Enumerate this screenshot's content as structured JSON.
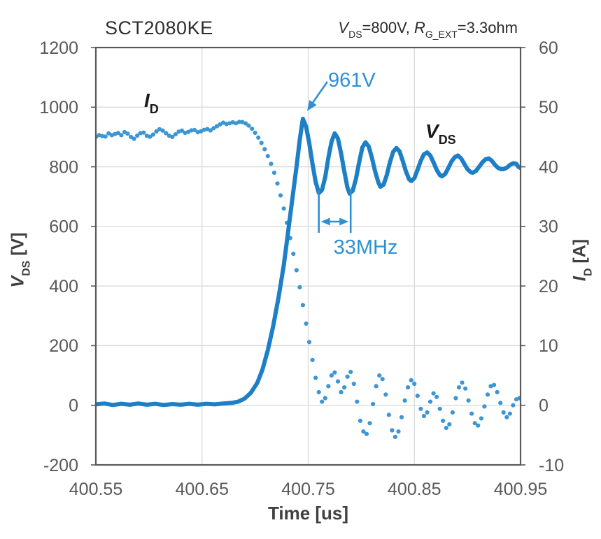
{
  "header": {
    "title": "SCT2080KE"
  },
  "condition": {
    "v": "V",
    "v_sub": "DS",
    "mid": "=800V, ",
    "r": "R",
    "r_sub": "G_EXT",
    "tail": "=3.3ohm"
  },
  "axis_titles": {
    "left_sym": "V",
    "left_sub": "DS",
    "left_unit": " [V]",
    "right_sym": "I",
    "right_sub": "D",
    "right_unit": " [A]",
    "x_label": "Time [us]"
  },
  "curve_labels": {
    "id_sym": "I",
    "id_sub": "D",
    "vds_sym": "V",
    "vds_sub": "DS"
  },
  "annotation_labels": {
    "peak": "961V",
    "freq": "33MHz"
  },
  "chart_data": {
    "type": "line",
    "title": "SCT2080KE",
    "condition": "V_DS=800V, R_G_EXT=3.3ohm",
    "x": {
      "label": "Time [us]",
      "min": 400.55,
      "max": 400.95,
      "ticks": [
        400.55,
        400.65,
        400.75,
        400.85,
        400.95
      ],
      "gridlines": [
        400.65,
        400.75,
        400.85
      ]
    },
    "y_left": {
      "label": "V_DS [V]",
      "min": -200,
      "max": 1200,
      "ticks": [
        1200,
        1000,
        800,
        600,
        400,
        200,
        0,
        -200
      ]
    },
    "y_right": {
      "label": "I_D [A]",
      "min": -10,
      "max": 60,
      "ticks": [
        60,
        50,
        40,
        30,
        20,
        10,
        0,
        -10
      ]
    },
    "grid": true,
    "legend": "none",
    "colors": {
      "grid": "#d9d9d9",
      "frame": "#595959",
      "tick_text": "#595959",
      "vds_line": "#1d7fc6",
      "id_dots": "#3c96d4",
      "annotation": "#2e90d3"
    },
    "annotations": {
      "peak": {
        "text": "961V",
        "t": 400.745,
        "value": 961
      },
      "ring": {
        "text": "33MHz",
        "t1": 400.76,
        "t2": 400.79,
        "freq_mhz": 33
      }
    },
    "series": [
      {
        "name": "I_D",
        "axis": "right",
        "style": "dotted",
        "color": "#3c96d4",
        "unit": "A",
        "points": [
          [
            400.55,
            45.0
          ],
          [
            400.554,
            45.4
          ],
          [
            400.558,
            44.9
          ],
          [
            400.562,
            45.6
          ],
          [
            400.566,
            45.2
          ],
          [
            400.57,
            45.8
          ],
          [
            400.574,
            45.3
          ],
          [
            400.578,
            46.0
          ],
          [
            400.582,
            45.1
          ],
          [
            400.586,
            44.7
          ],
          [
            400.59,
            45.4
          ],
          [
            400.594,
            45.9
          ],
          [
            400.598,
            45.2
          ],
          [
            400.602,
            45.0
          ],
          [
            400.606,
            45.8
          ],
          [
            400.61,
            46.3
          ],
          [
            400.614,
            46.0
          ],
          [
            400.618,
            45.3
          ],
          [
            400.622,
            45.0
          ],
          [
            400.626,
            45.6
          ],
          [
            400.63,
            46.2
          ],
          [
            400.634,
            45.7
          ],
          [
            400.638,
            45.9
          ],
          [
            400.642,
            46.3
          ],
          [
            400.646,
            45.8
          ],
          [
            400.65,
            46.0
          ],
          [
            400.654,
            46.4
          ],
          [
            400.658,
            46.1
          ],
          [
            400.662,
            46.6
          ],
          [
            400.666,
            47.0
          ],
          [
            400.67,
            47.4
          ],
          [
            400.674,
            47.1
          ],
          [
            400.678,
            47.5
          ],
          [
            400.682,
            47.3
          ],
          [
            400.686,
            47.6
          ],
          [
            400.69,
            47.4
          ],
          [
            400.694,
            46.9
          ],
          [
            400.698,
            46.2
          ],
          [
            400.702,
            45.2
          ],
          [
            400.706,
            44.0
          ],
          [
            400.71,
            42.6
          ],
          [
            400.714,
            41.0
          ],
          [
            400.718,
            39.0
          ],
          [
            400.722,
            36.6
          ],
          [
            400.726,
            33.8
          ],
          [
            400.73,
            30.6
          ],
          [
            400.734,
            27.2
          ],
          [
            400.738,
            23.6
          ],
          [
            400.742,
            19.8
          ],
          [
            400.746,
            15.8
          ],
          [
            400.75,
            11.6
          ],
          [
            400.754,
            7.6
          ],
          [
            400.757,
            4.6
          ],
          [
            400.76,
            2.2
          ],
          [
            400.763,
            0.6
          ],
          [
            400.766,
            1.2
          ],
          [
            400.769,
            3.2
          ],
          [
            400.772,
            5.0
          ],
          [
            400.775,
            5.5
          ],
          [
            400.778,
            4.0
          ],
          [
            400.781,
            2.2
          ],
          [
            400.784,
            3.0
          ],
          [
            400.787,
            4.8
          ],
          [
            400.79,
            5.6
          ],
          [
            400.793,
            3.6
          ],
          [
            400.796,
            0.6
          ],
          [
            400.799,
            -2.6
          ],
          [
            400.802,
            -4.4
          ],
          [
            400.805,
            -4.8
          ],
          [
            400.808,
            -3.0
          ],
          [
            400.811,
            0.2
          ],
          [
            400.814,
            3.2
          ],
          [
            400.817,
            5.0
          ],
          [
            400.82,
            4.4
          ],
          [
            400.823,
            1.8
          ],
          [
            400.826,
            -1.6
          ],
          [
            400.829,
            -4.2
          ],
          [
            400.832,
            -5.3
          ],
          [
            400.835,
            -4.4
          ],
          [
            400.838,
            -2.0
          ],
          [
            400.841,
            0.8
          ],
          [
            400.844,
            3.0
          ],
          [
            400.847,
            4.2
          ],
          [
            400.85,
            3.6
          ],
          [
            400.853,
            1.6
          ],
          [
            400.856,
            -0.6
          ],
          [
            400.859,
            -1.8
          ],
          [
            400.862,
            -1.2
          ],
          [
            400.865,
            0.6
          ],
          [
            400.868,
            2.0
          ],
          [
            400.871,
            1.4
          ],
          [
            400.874,
            -0.6
          ],
          [
            400.877,
            -2.6
          ],
          [
            400.88,
            -3.8
          ],
          [
            400.883,
            -3.2
          ],
          [
            400.886,
            -1.2
          ],
          [
            400.889,
            1.2
          ],
          [
            400.892,
            3.0
          ],
          [
            400.895,
            3.8
          ],
          [
            400.898,
            2.8
          ],
          [
            400.901,
            0.8
          ],
          [
            400.904,
            -1.4
          ],
          [
            400.907,
            -3.0
          ],
          [
            400.91,
            -3.4
          ],
          [
            400.913,
            -2.2
          ],
          [
            400.916,
            -0.2
          ],
          [
            400.919,
            1.8
          ],
          [
            400.922,
            3.2
          ],
          [
            400.925,
            3.4
          ],
          [
            400.928,
            2.2
          ],
          [
            400.931,
            0.4
          ],
          [
            400.934,
            -1.2
          ],
          [
            400.937,
            -2.0
          ],
          [
            400.94,
            -1.4
          ],
          [
            400.943,
            0.0
          ],
          [
            400.946,
            1.0
          ],
          [
            400.949,
            1.2
          ]
        ]
      },
      {
        "name": "V_DS",
        "axis": "left",
        "style": "solid",
        "color": "#1d7fc6",
        "unit": "V",
        "points": [
          [
            400.55,
            3
          ],
          [
            400.558,
            6
          ],
          [
            400.566,
            1
          ],
          [
            400.574,
            5
          ],
          [
            400.582,
            2
          ],
          [
            400.59,
            6
          ],
          [
            400.598,
            2
          ],
          [
            400.606,
            5
          ],
          [
            400.614,
            1
          ],
          [
            400.622,
            4
          ],
          [
            400.63,
            2
          ],
          [
            400.638,
            5
          ],
          [
            400.646,
            2
          ],
          [
            400.654,
            5
          ],
          [
            400.662,
            3
          ],
          [
            400.67,
            6
          ],
          [
            400.678,
            8
          ],
          [
            400.684,
            12
          ],
          [
            400.69,
            22
          ],
          [
            400.696,
            42
          ],
          [
            400.702,
            75
          ],
          [
            400.707,
            120
          ],
          [
            400.712,
            185
          ],
          [
            400.717,
            265
          ],
          [
            400.722,
            360
          ],
          [
            400.727,
            470
          ],
          [
            400.731,
            580
          ],
          [
            400.735,
            690
          ],
          [
            400.739,
            800
          ],
          [
            400.742,
            890
          ],
          [
            400.745,
            961
          ],
          [
            400.748,
            935
          ],
          [
            400.751,
            880
          ],
          [
            400.754,
            810
          ],
          [
            400.757,
            750
          ],
          [
            400.76,
            712
          ],
          [
            400.763,
            722
          ],
          [
            400.766,
            765
          ],
          [
            400.769,
            830
          ],
          [
            400.772,
            885
          ],
          [
            400.775,
            912
          ],
          [
            400.778,
            895
          ],
          [
            400.781,
            845
          ],
          [
            400.784,
            785
          ],
          [
            400.787,
            730
          ],
          [
            400.789,
            710
          ],
          [
            400.792,
            720
          ],
          [
            400.795,
            760
          ],
          [
            400.798,
            815
          ],
          [
            400.801,
            865
          ],
          [
            400.804,
            882
          ],
          [
            400.807,
            868
          ],
          [
            400.81,
            830
          ],
          [
            400.813,
            785
          ],
          [
            400.816,
            748
          ],
          [
            400.818,
            733
          ],
          [
            400.821,
            740
          ],
          [
            400.824,
            772
          ],
          [
            400.827,
            815
          ],
          [
            400.83,
            850
          ],
          [
            400.833,
            863
          ],
          [
            400.836,
            852
          ],
          [
            400.839,
            820
          ],
          [
            400.842,
            785
          ],
          [
            400.845,
            758
          ],
          [
            400.847,
            752
          ],
          [
            400.85,
            762
          ],
          [
            400.853,
            790
          ],
          [
            400.856,
            820
          ],
          [
            400.859,
            842
          ],
          [
            400.862,
            848
          ],
          [
            400.865,
            838
          ],
          [
            400.868,
            815
          ],
          [
            400.871,
            790
          ],
          [
            400.874,
            772
          ],
          [
            400.876,
            768
          ],
          [
            400.879,
            776
          ],
          [
            400.882,
            796
          ],
          [
            400.885,
            818
          ],
          [
            400.888,
            832
          ],
          [
            400.891,
            838
          ],
          [
            400.894,
            828
          ],
          [
            400.897,
            810
          ],
          [
            400.9,
            792
          ],
          [
            400.903,
            782
          ],
          [
            400.905,
            780
          ],
          [
            400.908,
            786
          ],
          [
            400.911,
            800
          ],
          [
            400.914,
            815
          ],
          [
            400.917,
            825
          ],
          [
            400.92,
            828
          ],
          [
            400.923,
            820
          ],
          [
            400.926,
            806
          ],
          [
            400.929,
            796
          ],
          [
            400.932,
            792
          ],
          [
            400.934,
            792
          ],
          [
            400.937,
            797
          ],
          [
            400.94,
            806
          ],
          [
            400.943,
            812
          ],
          [
            400.946,
            810
          ],
          [
            400.948,
            800
          ],
          [
            400.95,
            796
          ]
        ]
      }
    ]
  }
}
